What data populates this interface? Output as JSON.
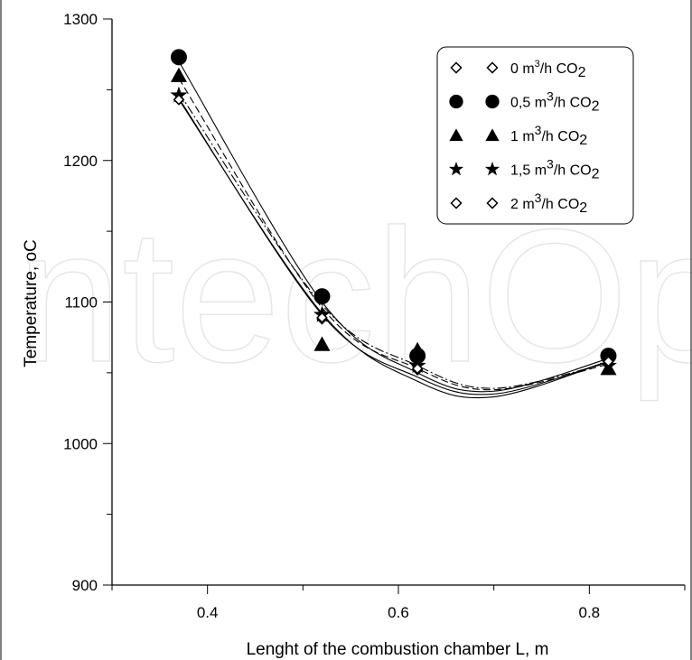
{
  "watermark": "IntechOpen",
  "chart_data": {
    "type": "scatter",
    "xlabel": "Lenght of the combustion chamber L, m",
    "ylabel": "Temperature, ",
    "ylabel_unit": "oC",
    "xlim": [
      0.3,
      0.9
    ],
    "ylim": [
      900,
      1300
    ],
    "x_ticks": [
      0.4,
      0.6,
      0.8
    ],
    "y_ticks": [
      900,
      1000,
      1100,
      1200,
      1300
    ],
    "legend_position": "top-right",
    "series": [
      {
        "name": "0 m³/h CO₂",
        "legend_text": "0 m",
        "legend_sup": "3",
        "legend_mid": "/h CO",
        "legend_sub": "2",
        "marker": "diamond",
        "x": [
          0.37,
          0.52,
          0.62,
          0.82
        ],
        "y": [
          1243,
          1088,
          1052,
          1058
        ],
        "fit_curve": [
          [
            0.37,
            1243
          ],
          [
            0.52,
            1092
          ],
          [
            0.62,
            1044
          ],
          [
            0.7,
            1033
          ],
          [
            0.82,
            1058
          ]
        ],
        "line_style": "solid"
      },
      {
        "name": "0,5 m³/h CO₂",
        "legend_text": "0,5 m",
        "legend_sup": "3",
        "legend_mid": "/h CO",
        "legend_sub": "2",
        "marker": "circle",
        "x": [
          0.37,
          0.52,
          0.62,
          0.82
        ],
        "y": [
          1273,
          1104,
          1062,
          1062
        ],
        "fit_curve": [
          [
            0.37,
            1270
          ],
          [
            0.52,
            1100
          ],
          [
            0.62,
            1050
          ],
          [
            0.7,
            1037
          ],
          [
            0.82,
            1060
          ]
        ],
        "line_style": "solid"
      },
      {
        "name": "1 m³/h CO₂",
        "legend_text": "1 m",
        "legend_sup": "3",
        "legend_mid": "/h CO",
        "legend_sub": "2",
        "marker": "triangle",
        "x": [
          0.37,
          0.52,
          0.62,
          0.82
        ],
        "y": [
          1260,
          1070,
          1066,
          1053
        ],
        "fit_curve": [
          [
            0.37,
            1258
          ],
          [
            0.52,
            1096
          ],
          [
            0.62,
            1053
          ],
          [
            0.7,
            1038
          ],
          [
            0.82,
            1056
          ]
        ],
        "line_style": "dashed"
      },
      {
        "name": "1,5 m³/h CO₂",
        "legend_text": "1,5 m",
        "legend_sup": "3",
        "legend_mid": "/h CO",
        "legend_sub": "2",
        "marker": "star",
        "x": [
          0.37,
          0.52,
          0.62,
          0.82
        ],
        "y": [
          1246,
          1091,
          1055,
          1055
        ],
        "fit_curve": [
          [
            0.37,
            1248
          ],
          [
            0.52,
            1098
          ],
          [
            0.62,
            1055
          ],
          [
            0.7,
            1039
          ],
          [
            0.82,
            1057
          ]
        ],
        "line_style": "dashdot"
      },
      {
        "name": "2 m³/h CO₂",
        "legend_text": "2 m",
        "legend_sup": "3",
        "legend_mid": "/h CO",
        "legend_sub": "2",
        "marker": "diamond",
        "x": [
          0.37,
          0.52,
          0.62,
          0.82
        ],
        "y": [
          1243,
          1089,
          1053,
          1058
        ],
        "fit_curve": [
          [
            0.37,
            1244
          ],
          [
            0.52,
            1091
          ],
          [
            0.62,
            1047
          ],
          [
            0.7,
            1035
          ],
          [
            0.82,
            1058
          ]
        ],
        "line_style": "solid"
      }
    ]
  }
}
